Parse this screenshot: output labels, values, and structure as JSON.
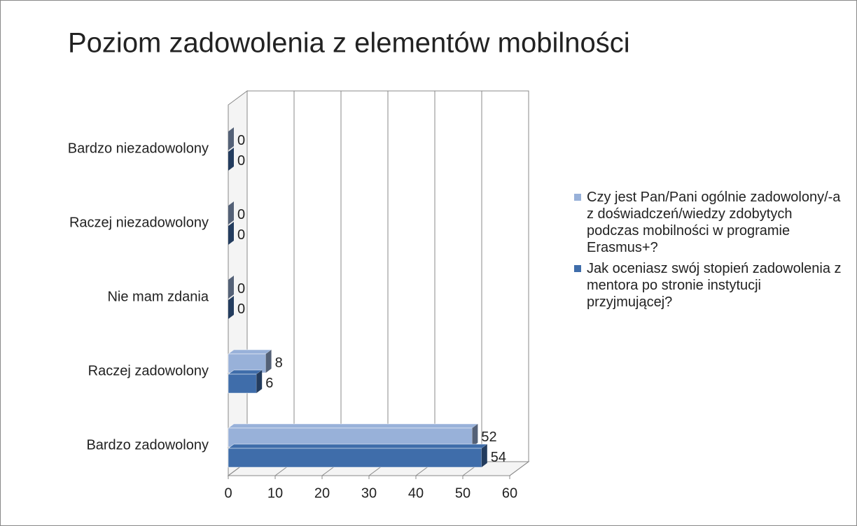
{
  "chart_data": {
    "type": "bar",
    "orientation": "horizontal",
    "three_d": true,
    "title": "Poziom zadowolenia z elementów mobilności",
    "categories": [
      "Bardzo niezadowolony",
      "Raczej niezadowolony",
      "Nie mam zdania",
      "Raczej zadowolony",
      "Bardzo zadowolony"
    ],
    "series": [
      {
        "name": "Czy jest Pan/Pani ogólnie zadowolony/-a z doświadczeń/wiedzy zdobytych podczas mobilności w programie Erasmus+?",
        "color": "#98b1d9",
        "values": [
          0,
          0,
          0,
          8,
          52
        ]
      },
      {
        "name": "Jak oceniasz swój stopień zadowolenia z mentora po stronie instytucji przyjmującej?",
        "color": "#3f6daa",
        "values": [
          0,
          0,
          0,
          6,
          54
        ]
      }
    ],
    "xlim": [
      0,
      60
    ],
    "xticks": [
      0,
      10,
      20,
      30,
      40,
      50,
      60
    ],
    "grid": true,
    "legend": "right"
  }
}
